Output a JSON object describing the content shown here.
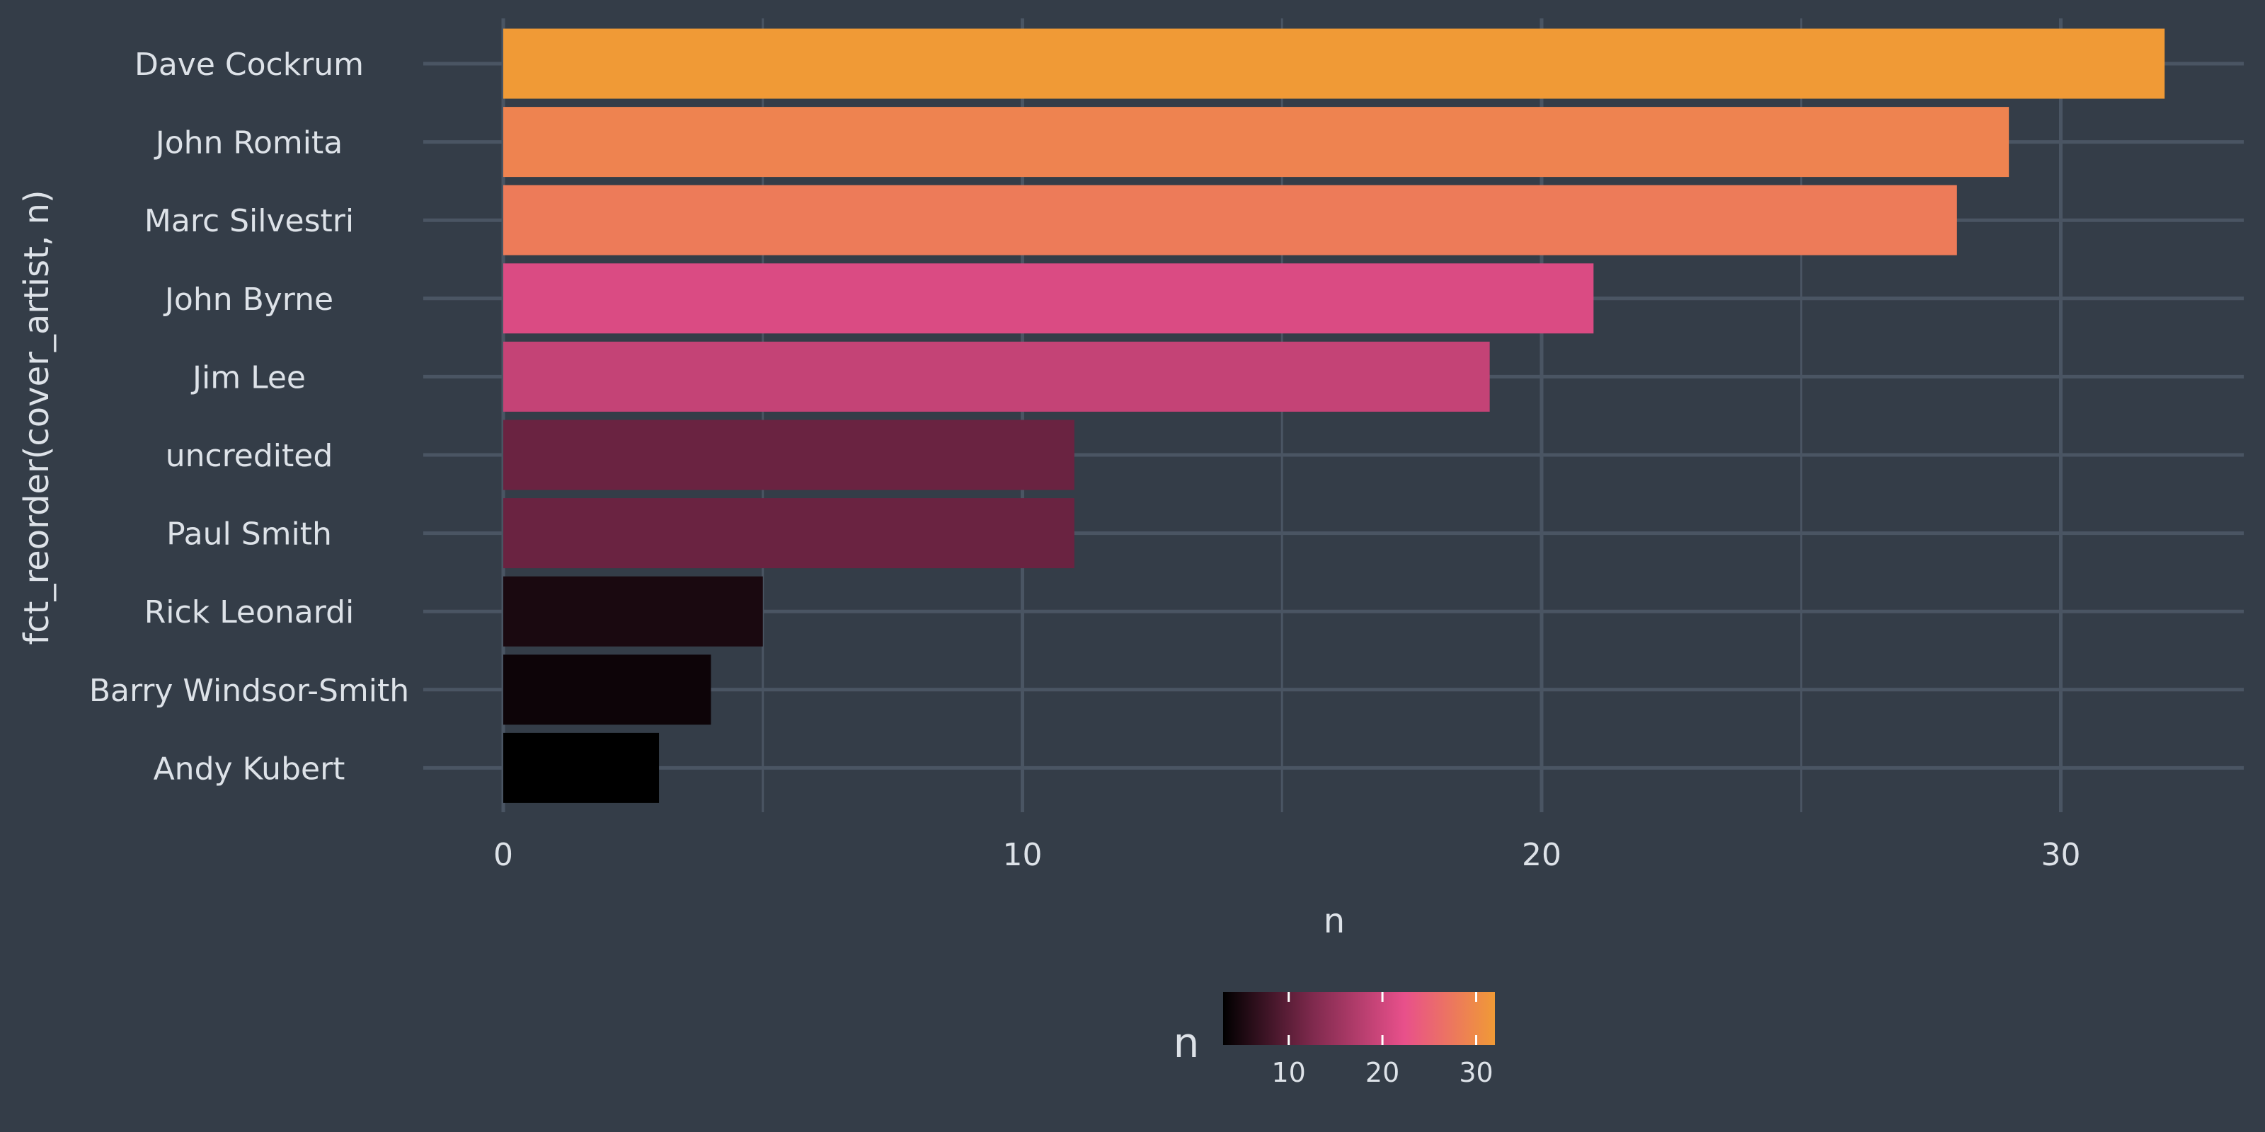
{
  "chart_data": {
    "type": "bar",
    "orientation": "horizontal",
    "categories": [
      "Dave Cockrum",
      "John Romita",
      "Marc Silvestri",
      "John Byrne",
      "Jim Lee",
      "uncredited",
      "Paul Smith",
      "Rick Leonardi",
      "Barry Windsor-Smith",
      "Andy Kubert"
    ],
    "values": [
      32,
      29,
      28,
      21,
      19,
      11,
      11,
      5,
      4,
      3
    ],
    "xlabel": "n",
    "ylabel": "fct_reorder(cover_artist, n)",
    "xlim": [
      0,
      33.5
    ],
    "x_ticks": [
      0,
      10,
      20,
      30
    ],
    "grid": true,
    "fill_by": "n",
    "legend": {
      "title": "n",
      "position": "bottom",
      "type": "colorbar",
      "range": [
        3,
        32
      ],
      "ticks": [
        10,
        20,
        30
      ],
      "colors": [
        "#000000",
        "#802a4e",
        "#e8508b",
        "#f09a36"
      ]
    }
  },
  "colors": {
    "background": "#343d48",
    "grid": "#4a5563",
    "text": "#dde2e8"
  }
}
